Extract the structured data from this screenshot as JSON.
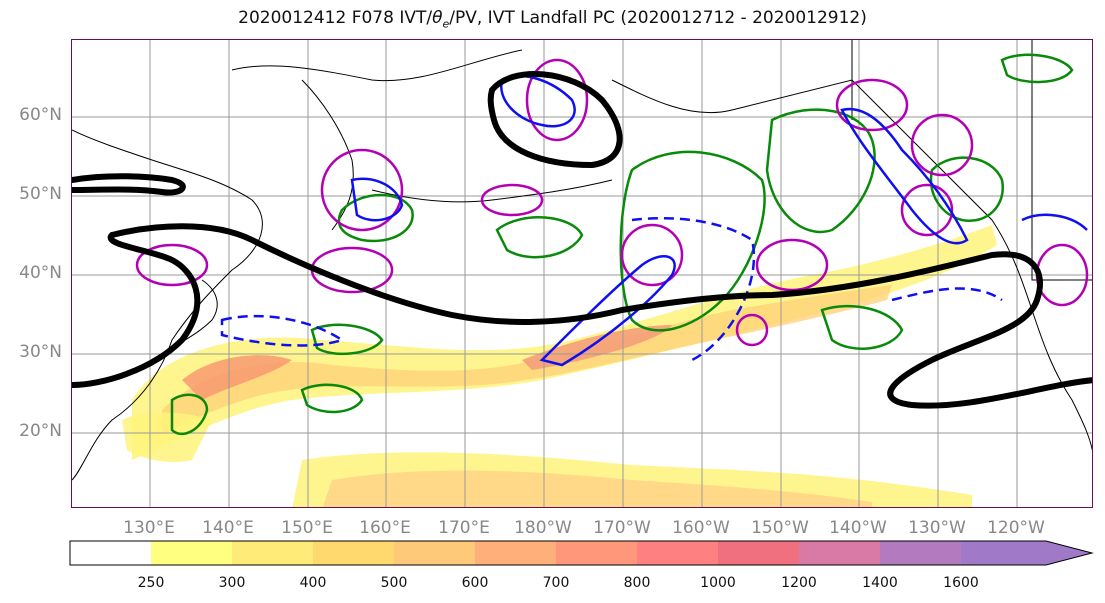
{
  "title": {
    "prefix": "2020012412 F078 IVT/",
    "theta": "θ",
    "theta_sub": "e",
    "suffix": "/PV, IVT Landfall PC (2020012712 - 2020012912)"
  },
  "lat_labels": [
    "60°N",
    "50°N",
    "40°N",
    "30°N",
    "20°N"
  ],
  "lon_labels": [
    "130°E",
    "140°E",
    "150°E",
    "160°E",
    "170°E",
    "180°W",
    "170°W",
    "160°W",
    "150°W",
    "140°W",
    "130°W",
    "120°W"
  ],
  "colorbar": {
    "ticks": [
      "250",
      "300",
      "400",
      "500",
      "600",
      "700",
      "800",
      "1000",
      "1200",
      "1400",
      "1600"
    ],
    "colors": [
      "#ffffff",
      "#ffff80",
      "#ffeb77",
      "#ffd86e",
      "#ffc97a",
      "#ffb07a",
      "#ff977a",
      "#ff8080",
      "#f07080",
      "#d97aa6",
      "#b47ac0",
      "#a07ac8"
    ]
  },
  "colors": {
    "jet": "#000000",
    "pv": "#0000ff",
    "theta": "#008000",
    "ivt_anom": "#bb00bb"
  }
}
